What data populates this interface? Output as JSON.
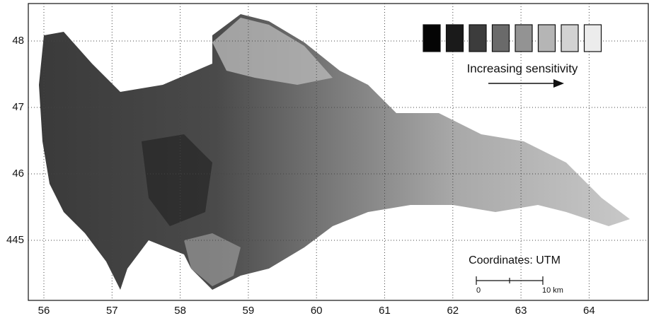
{
  "map": {
    "x_labels": [
      "56",
      "57",
      "58",
      "59",
      "60",
      "61",
      "62",
      "63",
      "64"
    ],
    "y_labels": [
      "48",
      "47",
      "46",
      "445"
    ],
    "legend": {
      "caption": "Increasing sensitivity",
      "swatch_colors": [
        "#050505",
        "#1a1a1a",
        "#3c3c3c",
        "#6a6a6a",
        "#939393",
        "#b5b5b5",
        "#d2d2d2",
        "#ececec"
      ]
    },
    "scale_bar": {
      "title": "Coordinates: UTM",
      "start": "0",
      "end": "10 km"
    }
  }
}
